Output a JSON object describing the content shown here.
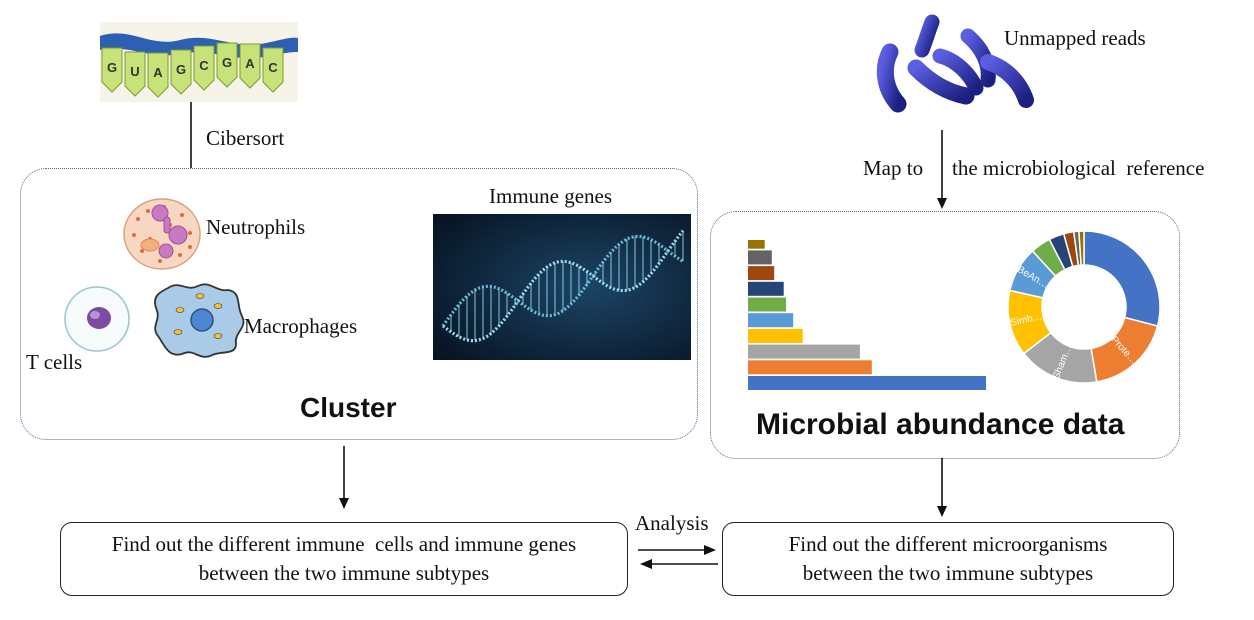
{
  "rna_strip": {
    "bases": [
      "G",
      "U",
      "A",
      "G",
      "C",
      "G",
      "A",
      "C"
    ]
  },
  "labels": {
    "cibersort": "Cibersort",
    "map_to": "Map to",
    "reference": "the microbiological  reference",
    "unmapped_reads": "Unmapped reads",
    "immune_genes": "Immune genes",
    "neutrophils": "Neutrophils",
    "macrophages": "Macrophages",
    "t_cells": "T cells",
    "analysis": "Analysis"
  },
  "cluster_panel": {
    "title": "Cluster"
  },
  "microbial_panel": {
    "title": "Microbial abundance data"
  },
  "result_left": {
    "line1": "Find out the different immune  cells and immune genes",
    "line2": "between the two immune subtypes"
  },
  "result_right": {
    "line1": "Find out the different microorganisms",
    "line2": "between the two immune subtypes"
  },
  "colors": {
    "panel_border": "#4a6f9c",
    "bacteria": "#2b2fa8",
    "dna_bg": "#0b1e33",
    "dna_glow": "#7fd8f0"
  },
  "chart_data": [
    {
      "type": "bar",
      "orientation": "horizontal",
      "values": [
        100,
        52,
        47,
        23,
        19,
        16,
        15,
        11,
        10,
        7
      ],
      "colors": [
        "#4472c4",
        "#ed7d31",
        "#a5a5a5",
        "#ffc000",
        "#5b9bd5",
        "#70ad47",
        "#264478",
        "#9e480e",
        "#636363",
        "#997300"
      ]
    },
    {
      "type": "pie",
      "donut": true,
      "values": [
        27,
        17,
        16,
        13,
        9,
        4,
        3,
        2,
        1,
        1
      ],
      "slice_labels": [
        "",
        "Prote…",
        "Sham…",
        "Simb…",
        "BeAn…",
        "",
        "",
        "",
        "",
        ""
      ],
      "colors": [
        "#4472c4",
        "#ed7d31",
        "#a5a5a5",
        "#ffc000",
        "#5b9bd5",
        "#70ad47",
        "#264478",
        "#9e480e",
        "#636363",
        "#997300"
      ]
    }
  ]
}
